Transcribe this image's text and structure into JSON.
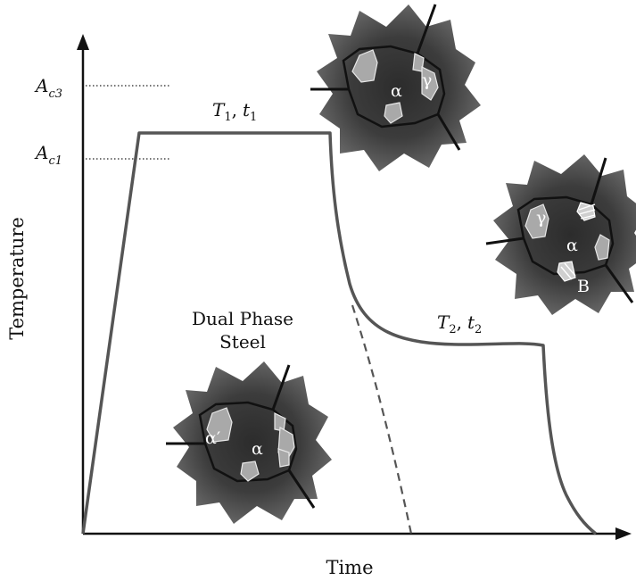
{
  "diagram": {
    "title": "",
    "axes": {
      "x_label": "Time",
      "y_label": "Temperature"
    },
    "levels": {
      "ac3": {
        "base": "A",
        "sub": "c3"
      },
      "ac1": {
        "base": "A",
        "sub": "c1"
      }
    },
    "stages": {
      "intercritical": {
        "T": "T",
        "T_sub": "1",
        "sep": ",",
        "t": "t",
        "t_sub": "1"
      },
      "isothermal": {
        "T": "T",
        "T_sub": "2",
        "sep": ",",
        "t": "t",
        "t_sub": "2"
      }
    },
    "product": {
      "line1": "Dual Phase",
      "line2": "Steel"
    },
    "microstructures": {
      "intercritical": {
        "matrix": "α",
        "second": "γ"
      },
      "bainitic": {
        "matrix": "α",
        "second": "γ",
        "third": "B"
      },
      "dual_phase": {
        "matrix": "α",
        "second": "α′"
      }
    },
    "colors": {
      "curve": "#555555",
      "axis": "#111111",
      "grain_dark": "#3e3e3e",
      "grain_mid": "#6a6a6a",
      "island": "#a9a9a9",
      "boundary": "#111111"
    }
  }
}
